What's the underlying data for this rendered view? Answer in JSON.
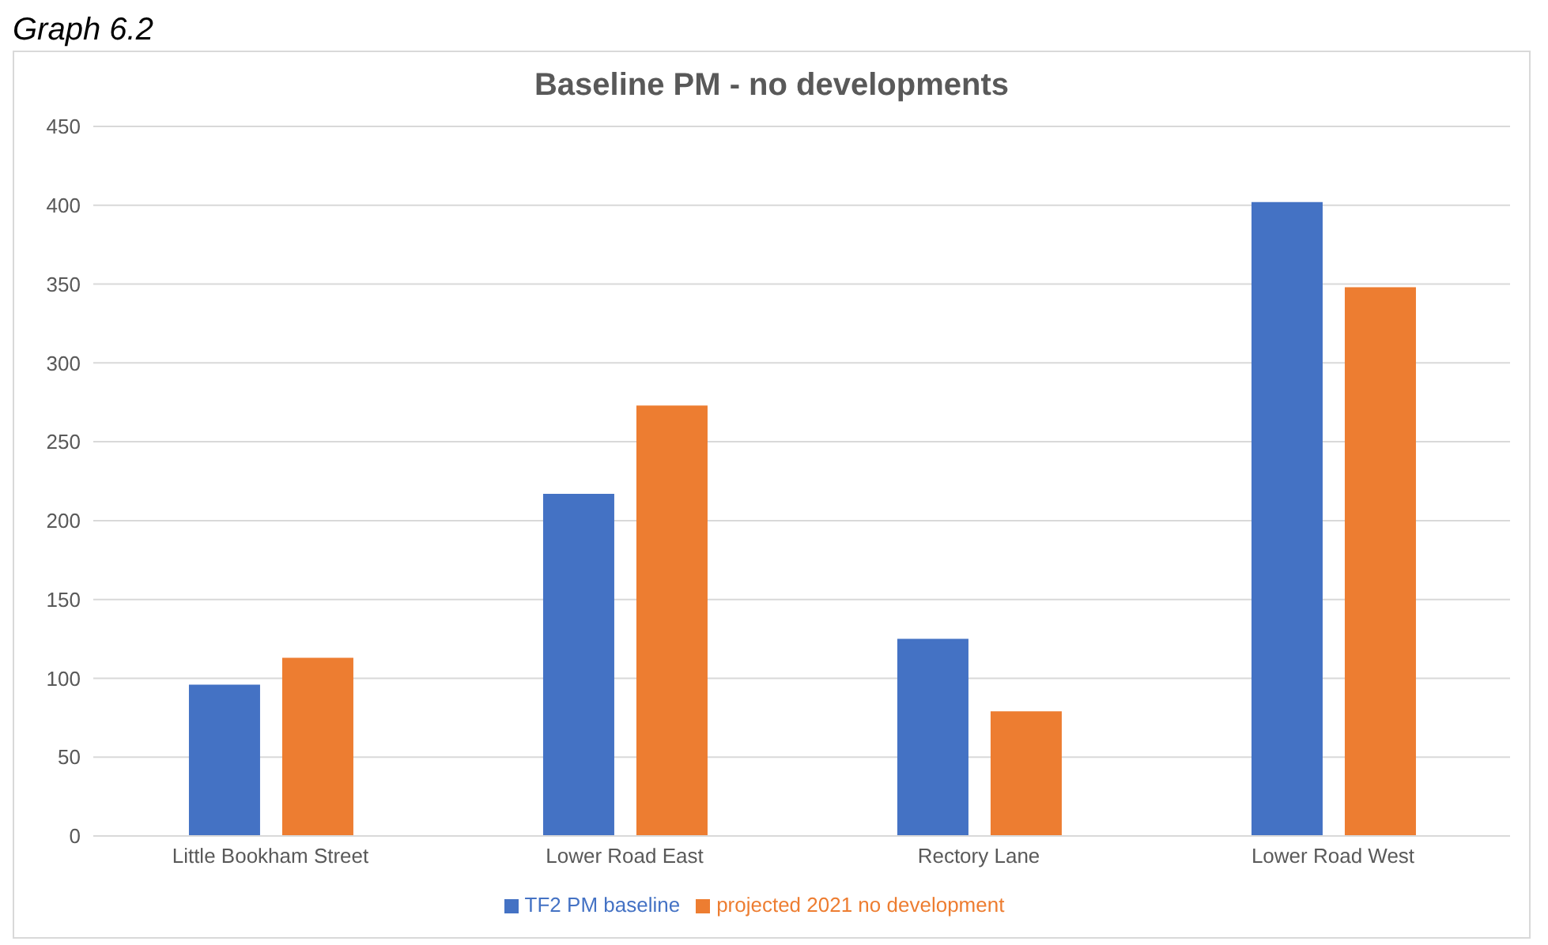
{
  "chart_data": {
    "type": "bar",
    "title": "Baseline PM - no developments",
    "annotations": [
      "Graph 6.2"
    ],
    "categories": [
      "Little Bookham Street",
      "Lower Road East",
      "Rectory Lane",
      "Lower Road West"
    ],
    "series": [
      {
        "name": "TF2 PM baseline",
        "color": "#4472c4",
        "values": [
          96,
          217,
          125,
          402
        ]
      },
      {
        "name": "projected 2021 no development",
        "color": "#ed7d31",
        "values": [
          113,
          273,
          79,
          348
        ]
      }
    ],
    "ylim": [
      0,
      450
    ],
    "yticks": [
      0,
      50,
      100,
      150,
      200,
      250,
      300,
      350,
      400,
      450
    ],
    "grid": "y",
    "legend": "bottom"
  }
}
